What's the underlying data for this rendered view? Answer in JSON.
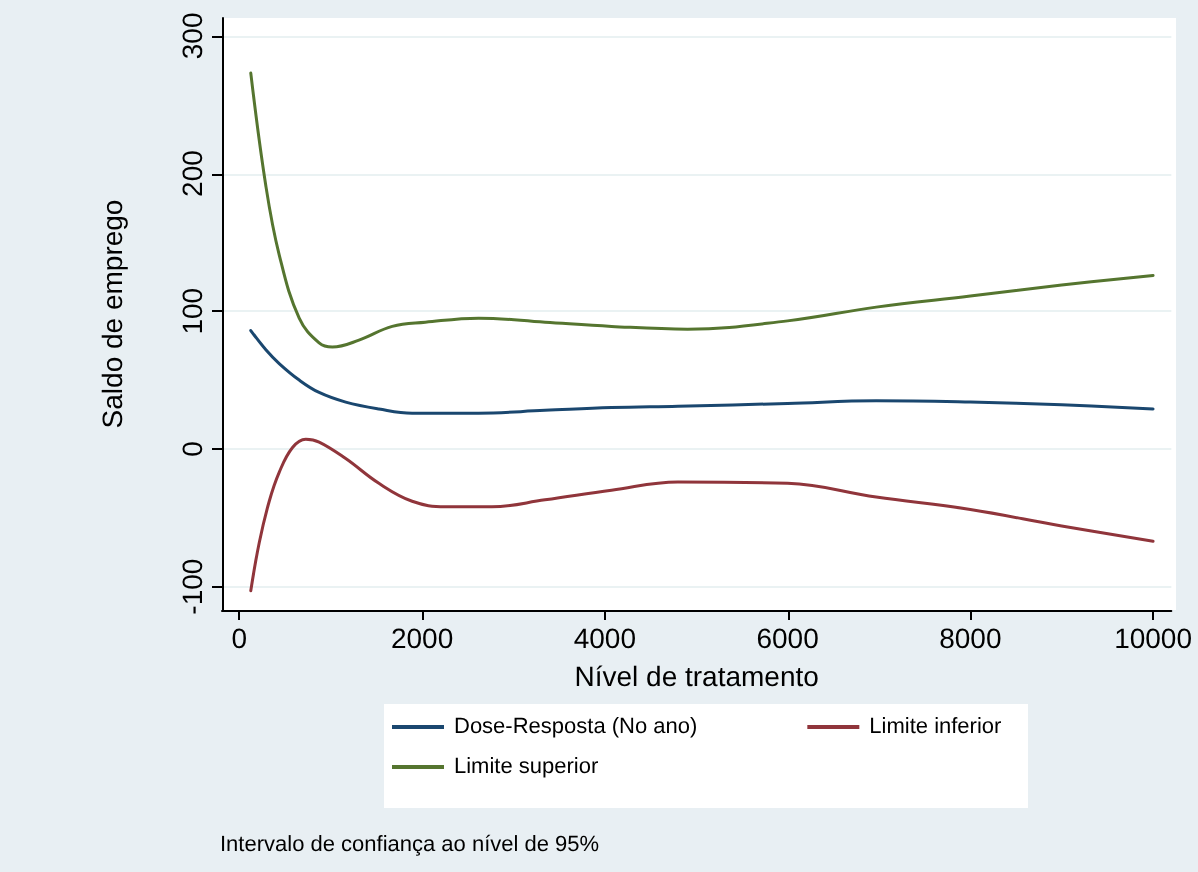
{
  "chart_data": {
    "type": "line",
    "xlabel": "Nível de tratamento",
    "ylabel": "Saldo de emprego",
    "annotations": [
      "Intervalo de confiança ao nível de 95%"
    ],
    "xlim": [
      -190,
      10200
    ],
    "ylim": [
      -117,
      313
    ],
    "xticks": [
      0,
      2000,
      4000,
      6000,
      8000,
      10000
    ],
    "yticks": [
      -100,
      0,
      100,
      200,
      300
    ],
    "grid": "y",
    "legend": "bottom",
    "line_style": "solid",
    "marker": "none",
    "series": [
      {
        "name": "Dose-Resposta (No ano)",
        "color": "#1a476f",
        "x": [
          125,
          290,
          436,
          655,
          873,
          1164,
          1527,
          1891,
          2618,
          3345,
          4073,
          4800,
          6000,
          6970,
          8000,
          9000,
          10000
        ],
        "values": [
          86,
          72,
          62,
          50,
          41,
          34,
          29,
          26,
          26,
          28,
          30,
          31,
          33,
          35,
          34,
          32,
          29
        ]
      },
      {
        "name": "Limite inferior",
        "color": "#90353b",
        "x": [
          125,
          218,
          327,
          436,
          582,
          727,
          873,
          1164,
          1527,
          1891,
          2255,
          2764,
          3345,
          4073,
          4800,
          6000,
          6970,
          8000,
          9000,
          10000
        ],
        "values": [
          -103,
          -68,
          -38,
          -17,
          1,
          7,
          5,
          -7,
          -25,
          -38,
          -42,
          -42,
          -37,
          -30,
          -24,
          -25,
          -35,
          -44,
          -56,
          -67
        ]
      },
      {
        "name": "Limite superior",
        "color": "#55752f",
        "x": [
          125,
          290,
          436,
          655,
          873,
          1018,
          1309,
          1673,
          2036,
          2618,
          3345,
          4073,
          4905,
          6000,
          6970,
          8000,
          9000,
          10000
        ],
        "values": [
          273,
          191,
          141,
          95,
          77,
          74,
          79,
          89,
          92,
          95,
          92,
          89,
          87,
          93,
          103,
          111,
          119,
          126
        ]
      }
    ]
  }
}
